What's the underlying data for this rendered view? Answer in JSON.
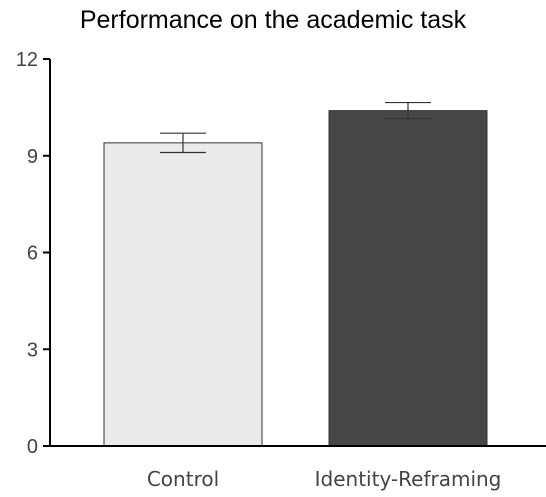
{
  "chart_data": {
    "type": "bar",
    "title": "Performance on the academic task",
    "xlabel": "",
    "ylabel": "",
    "categories": [
      "Control",
      "Identity-Reframing"
    ],
    "values": [
      9.4,
      10.4
    ],
    "error_bars": [
      0.3,
      0.25
    ],
    "ylim": [
      0,
      12
    ],
    "yticks": [
      "0",
      "3",
      "6",
      "9",
      "12"
    ],
    "bar_colors": [
      "#ebebeb",
      "#474747"
    ],
    "grid": false,
    "legend": "none"
  }
}
